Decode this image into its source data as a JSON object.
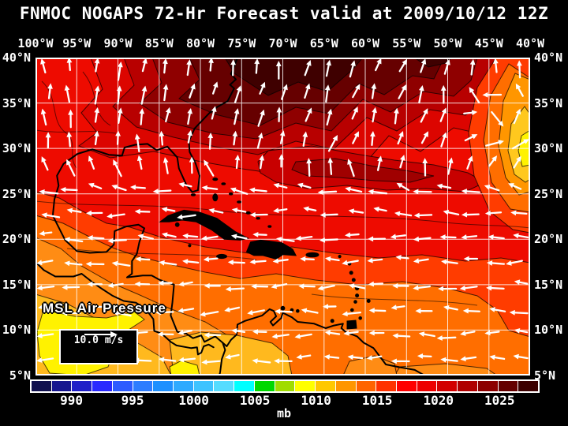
{
  "header": {
    "title": "FNMOC NOGAPS 72-Hr Forecast valid at 2009/10/12 12Z"
  },
  "map": {
    "overlay_label": "MSL Air Pressure",
    "wind_scale_label": "10.0 m/s"
  },
  "colors": {
    "background": "#000000",
    "text": "#ffffff",
    "grid": "#ffffff",
    "coastline": "#000000",
    "arrow": "#ffffff"
  },
  "chart_data": {
    "type": "heatmap",
    "title": "FNMOC NOGAPS 72-Hr Forecast valid at 2009/10/12 12Z",
    "variable": "MSL Air Pressure",
    "unit": "mb",
    "x_ticks": [
      "100°W",
      "95°W",
      "90°W",
      "85°W",
      "80°W",
      "75°W",
      "70°W",
      "65°W",
      "60°W",
      "55°W",
      "50°W",
      "45°W",
      "40°W"
    ],
    "y_ticks": [
      "40°N",
      "35°N",
      "30°N",
      "25°N",
      "20°N",
      "15°N",
      "10°N",
      "5°N"
    ],
    "lon_range_deg": [
      -100,
      -40
    ],
    "lat_range_deg": [
      5,
      40
    ],
    "grid": {
      "x_divisions": 12,
      "y_divisions": 7,
      "grid_on": true
    },
    "colorbar": {
      "unit": "mb",
      "tick_labels": [
        "990",
        "995",
        "1000",
        "1005",
        "1010",
        "1015",
        "1020",
        "1025"
      ],
      "tick_positions": [
        0.0814,
        0.2014,
        0.3214,
        0.4414,
        0.5614,
        0.6814,
        0.8014,
        0.9214
      ],
      "cell_colors": [
        "#10104e",
        "#16168f",
        "#1f1fc8",
        "#2929ff",
        "#2e5bff",
        "#2e7dff",
        "#1e90ff",
        "#2eaaff",
        "#3ec3ff",
        "#55dcff",
        "#00ffff",
        "#00d800",
        "#a0dc00",
        "#ffff00",
        "#ffc800",
        "#ff9600",
        "#ff6400",
        "#ff3200",
        "#ff0000",
        "#ed0000",
        "#d20000",
        "#af0000",
        "#8c0000",
        "#640000",
        "#3c0000"
      ]
    },
    "wind_reference_label": "10.0 m/s",
    "wind_field": {
      "trade_angle": 180,
      "trade_lat_max": 25,
      "subtropical_lat_min": 29,
      "subtropical_angle_base": 270,
      "subtropical_shear": 0.5,
      "vortices": [
        {
          "lon": -42.5,
          "lat": 34,
          "radius_deg": 5,
          "gain": 0.92,
          "spin": "ccw"
        }
      ],
      "arrow_cols": 21,
      "arrow_rows": 13
    }
  }
}
